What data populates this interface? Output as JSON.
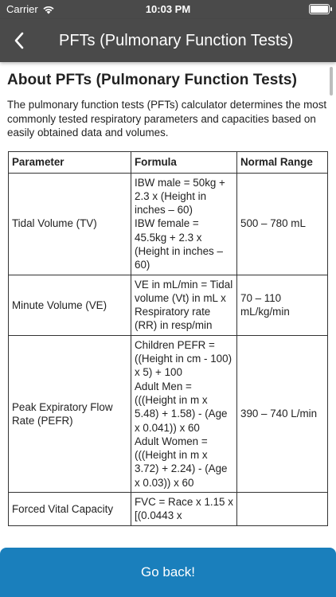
{
  "status": {
    "carrier": "Carrier",
    "time": "10:03 PM"
  },
  "appbar": {
    "title": "PFTs (Pulmonary Function Tests)"
  },
  "article": {
    "heading": "About PFTs (Pulmonary Function Tests)",
    "intro": "The pulmonary function tests (PFTs) calculator determines the most commonly tested respiratory parameters and capacities based on easily obtained data and volumes."
  },
  "table": {
    "headers": [
      "Parameter",
      "Formula",
      "Normal Range"
    ],
    "rows": [
      {
        "parameter": "Tidal Volume (TV)",
        "formula": "IBW male = 50kg + 2.3 x (Height in inches – 60)\nIBW female = 45.5kg + 2.3 x (Height in inches – 60)",
        "range": "500 – 780 mL"
      },
      {
        "parameter": "Minute Volume (VE)",
        "formula": "VE in mL/min = Tidal volume (Vt) in mL x Respiratory rate (RR) in resp/min",
        "range": "70 – 110 mL/kg/min"
      },
      {
        "parameter": "Peak Expiratory Flow Rate (PEFR)",
        "formula": "Children PEFR = ((Height in cm - 100) x 5) + 100\nAdult Men = (((Height in m x 5.48) + 1.58) - (Age x 0.041)) x 60\nAdult Women = (((Height in m x 3.72) + 2.24) - (Age x 0.03)) x 60",
        "range": "390 – 740 L/min"
      },
      {
        "parameter": "Forced Vital Capacity",
        "formula": "FVC = Race x 1.15 x [(0.0443 x",
        "range": ""
      }
    ]
  },
  "footer": {
    "button_label": "Go back!"
  },
  "colors": {
    "appbar": "#4a4a4a",
    "button": "#1a7fbc"
  }
}
